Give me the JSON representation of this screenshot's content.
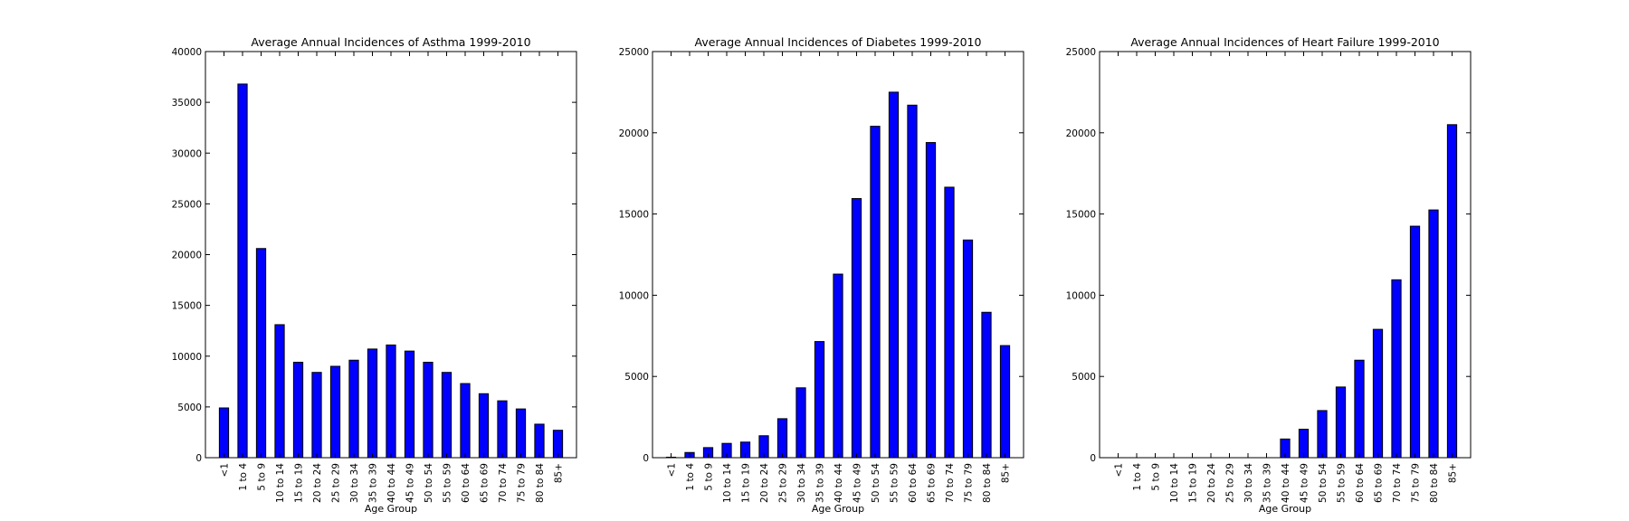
{
  "chart_data": [
    {
      "type": "bar",
      "title": "Average Annual Incidences of Asthma 1999-2010",
      "xlabel": "Age Group",
      "ylabel": "",
      "ylim": [
        0,
        40000
      ],
      "yticks": [
        0,
        5000,
        10000,
        15000,
        20000,
        25000,
        30000,
        35000,
        40000
      ],
      "categories": [
        "<1",
        "1 to 4",
        "5 to 9",
        "10 to 14",
        "15 to 19",
        "20 to 24",
        "25 to 29",
        "30 to 34",
        "35 to 39",
        "40 to 44",
        "45 to 49",
        "50 to 54",
        "55 to 59",
        "60 to 64",
        "65 to 69",
        "70 to 74",
        "75 to 79",
        "80 to 84",
        "85+"
      ],
      "values": [
        4900,
        36800,
        20600,
        13100,
        9400,
        8400,
        9000,
        9600,
        10700,
        11100,
        10500,
        9400,
        8400,
        7300,
        6300,
        5600,
        4800,
        3300,
        2700
      ],
      "bar_color": "#0000ff",
      "grid": false,
      "legend": "none"
    },
    {
      "type": "bar",
      "title": "Average Annual Incidences of Diabetes 1999-2010",
      "xlabel": "Age Group",
      "ylabel": "",
      "ylim": [
        0,
        25000
      ],
      "yticks": [
        0,
        5000,
        10000,
        15000,
        20000,
        25000
      ],
      "categories": [
        "<1",
        "1 to 4",
        "5 to 9",
        "10 to 14",
        "15 to 19",
        "20 to 24",
        "25 to 29",
        "30 to 34",
        "35 to 39",
        "40 to 44",
        "45 to 49",
        "50 to 54",
        "55 to 59",
        "60 to 64",
        "65 to 69",
        "70 to 74",
        "75 to 79",
        "80 to 84",
        "85+"
      ],
      "values": [
        30,
        320,
        620,
        880,
        960,
        1350,
        2400,
        4300,
        7150,
        11300,
        15950,
        20400,
        22500,
        21700,
        19400,
        16650,
        13400,
        8950,
        6900
      ],
      "bar_color": "#0000ff",
      "grid": false,
      "legend": "none"
    },
    {
      "type": "bar",
      "title": "Average Annual Incidences of Heart Failure 1999-2010",
      "xlabel": "Age Group",
      "ylabel": "",
      "ylim": [
        0,
        25000
      ],
      "yticks": [
        0,
        5000,
        10000,
        15000,
        20000,
        25000
      ],
      "categories": [
        "<1",
        "1 to 4",
        "5 to 9",
        "10 to 14",
        "15 to 19",
        "20 to 24",
        "25 to 29",
        "30 to 34",
        "35 to 39",
        "40 to 44",
        "45 to 49",
        "50 to 54",
        "55 to 59",
        "60 to 64",
        "65 to 69",
        "70 to 74",
        "75 to 79",
        "80 to 84",
        "85+"
      ],
      "values": [
        0,
        0,
        0,
        0,
        0,
        0,
        0,
        0,
        0,
        1150,
        1750,
        2900,
        4350,
        6000,
        7900,
        10950,
        14250,
        15250,
        20500
      ],
      "bar_color": "#0000ff",
      "grid": false,
      "legend": "none"
    }
  ]
}
